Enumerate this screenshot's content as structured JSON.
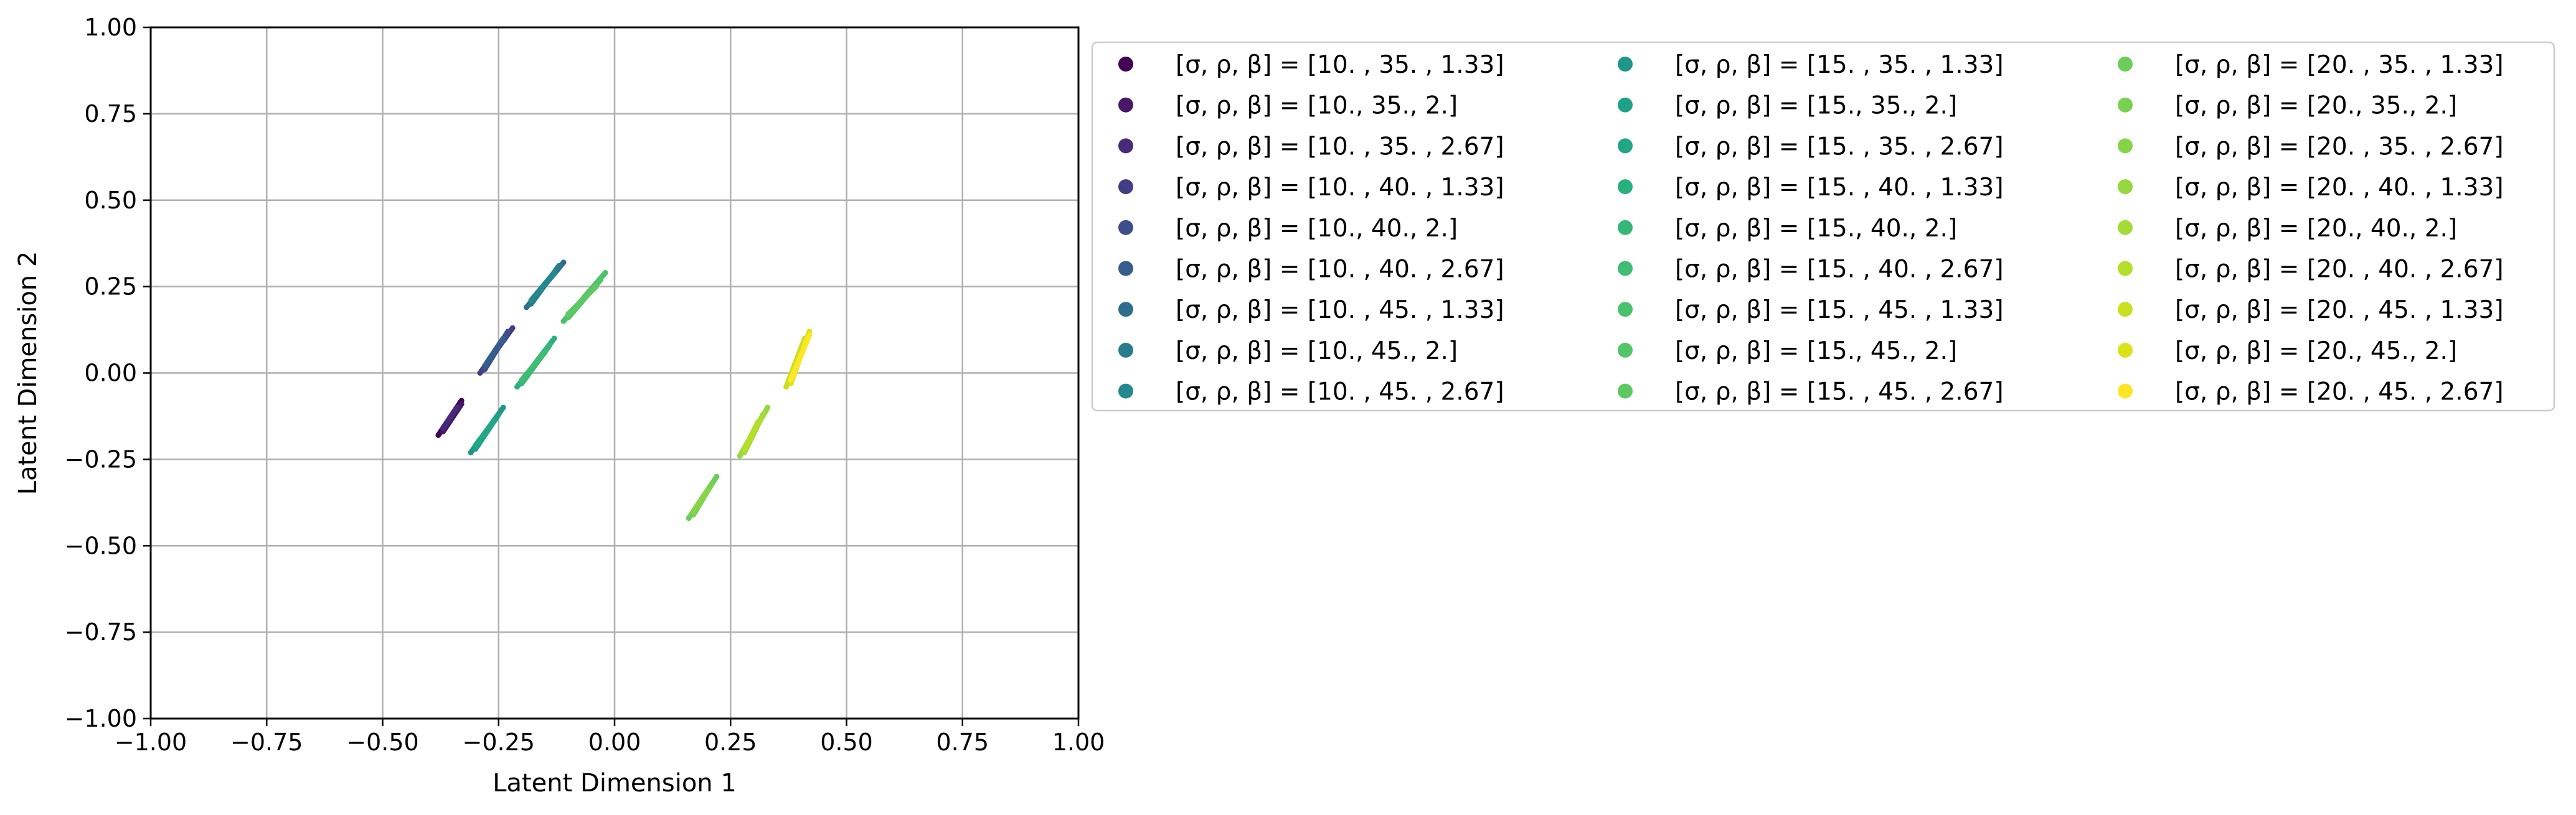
{
  "chart_data": {
    "type": "scatter",
    "title": "",
    "xlabel": "Latent Dimension 1",
    "ylabel": "Latent Dimension 2",
    "xlim": [
      -1.0,
      1.0
    ],
    "ylim": [
      -1.0,
      1.0
    ],
    "xticks": [
      -1.0,
      -0.75,
      -0.5,
      -0.25,
      0.0,
      0.25,
      0.5,
      0.75,
      1.0
    ],
    "yticks": [
      -1.0,
      -0.75,
      -0.5,
      -0.25,
      0.0,
      0.25,
      0.5,
      0.75,
      1.0
    ],
    "xtick_labels": [
      "−1.00",
      "−0.75",
      "−0.50",
      "−0.25",
      "0.00",
      "0.25",
      "0.50",
      "0.75",
      "1.00"
    ],
    "ytick_labels": [
      "−1.00",
      "−0.75",
      "−0.50",
      "−0.25",
      "0.00",
      "0.25",
      "0.50",
      "0.75",
      "1.00"
    ],
    "grid": true,
    "legend_position": "outside right, top",
    "legend_columns": 3,
    "series": [
      {
        "name": "[σ, ρ, β] = [10.  , 35.  ,  1.33]",
        "color": "#440154",
        "x": [
          -0.38,
          -0.33
        ],
        "y": [
          -0.18,
          -0.08
        ]
      },
      {
        "name": "[σ, ρ, β] = [10., 35.,  2.]",
        "color": "#481769",
        "x": [
          -0.37,
          -0.33
        ],
        "y": [
          -0.17,
          -0.09
        ]
      },
      {
        "name": "[σ, ρ, β] = [10.  , 35.  ,  2.67]",
        "color": "#472a7a",
        "x": [
          -0.37,
          -0.34
        ],
        "y": [
          -0.16,
          -0.1
        ]
      },
      {
        "name": "[σ, ρ, β] = [10.  , 40.  ,  1.33]",
        "color": "#433d84",
        "x": [
          -0.29,
          -0.22
        ],
        "y": [
          0.0,
          0.13
        ]
      },
      {
        "name": "[σ, ρ, β] = [10., 40.,  2.]",
        "color": "#3d4e8a",
        "x": [
          -0.28,
          -0.23
        ],
        "y": [
          0.01,
          0.12
        ]
      },
      {
        "name": "[σ, ρ, β] = [10.  , 40.  ,  2.67]",
        "color": "#355e8d",
        "x": [
          -0.28,
          -0.24
        ],
        "y": [
          0.02,
          0.1
        ]
      },
      {
        "name": "[σ, ρ, β] = [10.  , 45.  ,  1.33]",
        "color": "#2e6d8e",
        "x": [
          -0.19,
          -0.11
        ],
        "y": [
          0.19,
          0.32
        ]
      },
      {
        "name": "[σ, ρ, β] = [10., 45.,  2.]",
        "color": "#297b8e",
        "x": [
          -0.18,
          -0.12
        ],
        "y": [
          0.2,
          0.31
        ]
      },
      {
        "name": "[σ, ρ, β] = [10.  , 45.  ,  2.67]",
        "color": "#23898e",
        "x": [
          -0.18,
          -0.13
        ],
        "y": [
          0.21,
          0.29
        ]
      },
      {
        "name": "[σ, ρ, β] = [15.  , 35.  ,  1.33]",
        "color": "#1f968b",
        "x": [
          -0.31,
          -0.24
        ],
        "y": [
          -0.23,
          -0.1
        ]
      },
      {
        "name": "[σ, ρ, β] = [15., 35.,  2.]",
        "color": "#1fa188",
        "x": [
          -0.3,
          -0.25
        ],
        "y": [
          -0.22,
          -0.12
        ]
      },
      {
        "name": "[σ, ρ, β] = [15.  , 35.  ,  2.67]",
        "color": "#22a785",
        "x": [
          -0.3,
          -0.26
        ],
        "y": [
          -0.21,
          -0.14
        ]
      },
      {
        "name": "[σ, ρ, β] = [15.  , 40.  ,  1.33]",
        "color": "#2ab07f",
        "x": [
          -0.21,
          -0.13
        ],
        "y": [
          -0.04,
          0.1
        ]
      },
      {
        "name": "[σ, ρ, β] = [15., 40.,  2.]",
        "color": "#35b779",
        "x": [
          -0.2,
          -0.14
        ],
        "y": [
          -0.03,
          0.08
        ]
      },
      {
        "name": "[σ, ρ, β] = [15.  , 40.  ,  2.67]",
        "color": "#40bd72",
        "x": [
          -0.2,
          -0.15
        ],
        "y": [
          -0.02,
          0.06
        ]
      },
      {
        "name": "[σ, ρ, β] = [15.  , 45.  ,  1.33]",
        "color": "#4ac16d",
        "x": [
          -0.11,
          -0.02
        ],
        "y": [
          0.15,
          0.29
        ]
      },
      {
        "name": "[σ, ρ, β] = [15., 45.,  2.]",
        "color": "#52c569",
        "x": [
          -0.1,
          -0.03
        ],
        "y": [
          0.16,
          0.27
        ]
      },
      {
        "name": "[σ, ρ, β] = [15.  , 45.  ,  2.67]",
        "color": "#5ec962",
        "x": [
          -0.1,
          -0.04
        ],
        "y": [
          0.17,
          0.25
        ]
      },
      {
        "name": "[σ, ρ, β] = [20.  , 35.  ,  1.33]",
        "color": "#6ccd5a",
        "x": [
          0.16,
          0.22
        ],
        "y": [
          -0.42,
          -0.3
        ]
      },
      {
        "name": "[σ, ρ, β] = [20., 35.,  2.]",
        "color": "#79d151",
        "x": [
          0.17,
          0.21
        ],
        "y": [
          -0.41,
          -0.32
        ]
      },
      {
        "name": "[σ, ρ, β] = [20.  , 35.  ,  2.67]",
        "color": "#86d549",
        "x": [
          0.17,
          0.2
        ],
        "y": [
          -0.4,
          -0.34
        ]
      },
      {
        "name": "[σ, ρ, β] = [20.  , 40.  ,  1.33]",
        "color": "#95d840",
        "x": [
          0.27,
          0.33
        ],
        "y": [
          -0.24,
          -0.1
        ]
      },
      {
        "name": "[σ, ρ, β] = [20., 40.,  2.]",
        "color": "#a5db36",
        "x": [
          0.28,
          0.32
        ],
        "y": [
          -0.23,
          -0.12
        ]
      },
      {
        "name": "[σ, ρ, β] = [20.  , 40.  ,  2.67]",
        "color": "#b5de2b",
        "x": [
          0.28,
          0.31
        ],
        "y": [
          -0.22,
          -0.14
        ]
      },
      {
        "name": "[σ, ρ, β] = [20.  , 45.  ,  1.33]",
        "color": "#c8e020",
        "x": [
          0.37,
          0.41
        ],
        "y": [
          -0.04,
          0.1
        ]
      },
      {
        "name": "[σ, ρ, β] = [20., 45.,  2.]",
        "color": "#dae319",
        "x": [
          0.38,
          0.42
        ],
        "y": [
          -0.03,
          0.12
        ]
      },
      {
        "name": "[σ, ρ, β] = [20.  , 45.  ,  2.67]",
        "color": "#fde725",
        "x": [
          0.38,
          0.42
        ],
        "y": [
          -0.02,
          0.11
        ]
      }
    ]
  }
}
